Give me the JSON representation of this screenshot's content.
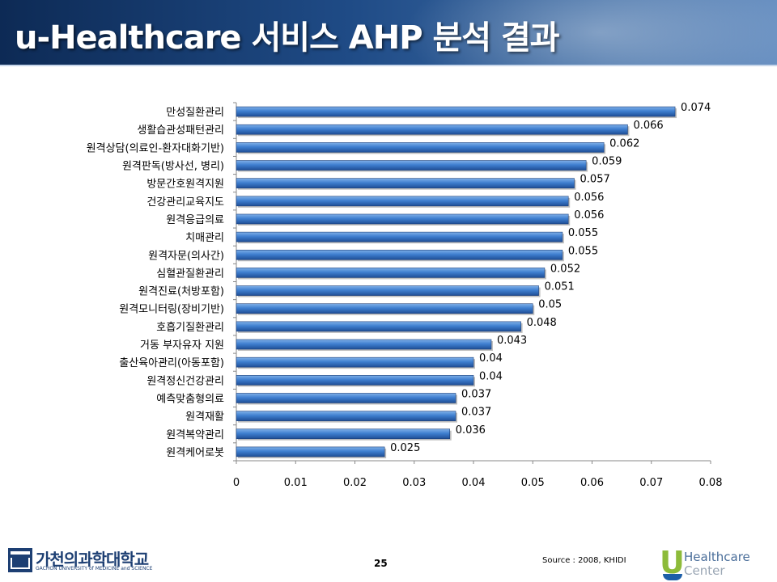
{
  "slide": {
    "title": "u-Healthcare 서비스 AHP 분석 결과",
    "page_number": "25",
    "source": "Source : 2008, KHIDI"
  },
  "footer": {
    "university_name": "가천의과학대학교",
    "university_sub": "GACHON UNIVERSITY of MEDICINE and SCIENCE",
    "brand_letter": "U",
    "brand_line1": "Healthcare",
    "brand_line2": "Center"
  },
  "colors": {
    "bar_light": "#7fb0e8",
    "bar_mid": "#3f7fd0",
    "bar_dark": "#1f4e96",
    "header": "#1f4b86"
  },
  "chart_data": {
    "type": "bar",
    "orientation": "horizontal",
    "title": "",
    "xlabel": "",
    "ylabel": "",
    "xlim": [
      0,
      0.08
    ],
    "xticks": [
      "0",
      "0.01",
      "0.02",
      "0.03",
      "0.04",
      "0.05",
      "0.06",
      "0.07",
      "0.08"
    ],
    "grid": false,
    "categories": [
      "만성질환관리",
      "생활습관성패턴관리",
      "원격상담(의료인-환자대화기반)",
      "원격판독(방사선, 병리)",
      "방문간호원격지원",
      "건강관리교육지도",
      "원격응급의료",
      "치매관리",
      "원격자문(의사간)",
      "심혈관질환관리",
      "원격진료(처방포함)",
      "원격모니터링(장비기반)",
      "호흡기질환관리",
      "거동 부자유자 지원",
      "출산육아관리(아동포함)",
      "원격정신건강관리",
      "예측맞춤형의료",
      "원격재활",
      "원격복약관리",
      "원격케어로봇"
    ],
    "values": [
      0.074,
      0.066,
      0.062,
      0.059,
      0.057,
      0.056,
      0.056,
      0.055,
      0.055,
      0.052,
      0.051,
      0.05,
      0.048,
      0.043,
      0.04,
      0.04,
      0.037,
      0.037,
      0.036,
      0.025
    ],
    "value_labels": [
      "0.074",
      "0.066",
      "0.062",
      "0.059",
      "0.057",
      "0.056",
      "0.056",
      "0.055",
      "0.055",
      "0.052",
      "0.051",
      "0.05",
      "0.048",
      "0.043",
      "0.04",
      "0.04",
      "0.037",
      "0.037",
      "0.036",
      "0.025"
    ]
  }
}
